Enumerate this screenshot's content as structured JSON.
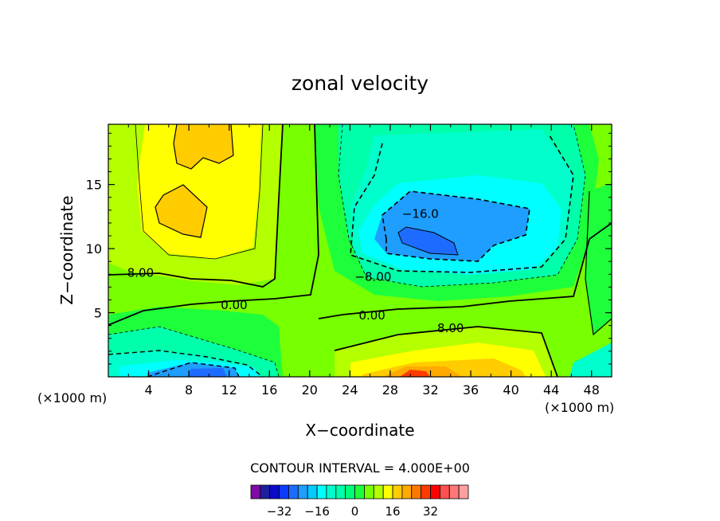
{
  "chart_data": {
    "type": "contour",
    "title": "zonal velocity",
    "xlabel": "X−coordinate",
    "ylabel": "Z−coordinate",
    "x_unit_left": "(×1000 m)",
    "x_unit_right": "(×1000 m)",
    "xlim": [
      0,
      50
    ],
    "ylim": [
      0,
      19.7
    ],
    "x_ticks": [
      4,
      8,
      12,
      16,
      20,
      24,
      28,
      32,
      36,
      40,
      44,
      48
    ],
    "y_ticks": [
      5,
      10,
      15
    ],
    "contour_interval_label": "CONTOUR INTERVAL = 4.000E+00",
    "contour_labels": [
      {
        "text": "8.00",
        "x": 3.2,
        "z": 8.1
      },
      {
        "text": "0.00",
        "x": 12.5,
        "z": 5.6
      },
      {
        "text": "−16.0",
        "x": 31.0,
        "z": 12.7
      },
      {
        "text": "−8.00",
        "x": 26.3,
        "z": 7.8
      },
      {
        "text": "0.00",
        "x": 26.2,
        "z": 4.8
      },
      {
        "text": "8.00",
        "x": 34.0,
        "z": 3.8
      }
    ],
    "features": [
      {
        "kind": "max",
        "x": 9.5,
        "z": 17.5,
        "value": 16
      },
      {
        "kind": "max",
        "x": 7.0,
        "z": 13.0,
        "value": 16
      },
      {
        "kind": "min",
        "x": 30.0,
        "z": 10.8,
        "value": -20
      },
      {
        "kind": "min",
        "x": 9.0,
        "z": 0.3,
        "value": -20
      },
      {
        "kind": "max",
        "x": 30.0,
        "z": 0.3,
        "value": 24
      }
    ],
    "colorbar": {
      "colors": [
        "#7f0aa6",
        "#1e1e9e",
        "#0a0acc",
        "#0a3cff",
        "#1e6cff",
        "#1e9eff",
        "#00ccff",
        "#00ffff",
        "#00ffcc",
        "#00ffaa",
        "#00ff78",
        "#1eff3c",
        "#78ff00",
        "#b4ff00",
        "#ffff00",
        "#ffcc00",
        "#ffaa00",
        "#ff7800",
        "#ff3c00",
        "#ff0000",
        "#ff5050",
        "#ff7878",
        "#ff9e9e"
      ],
      "range": [
        -44,
        48
      ],
      "tick_values": [
        -32,
        -16,
        0,
        16,
        32
      ],
      "tick_labels": [
        "−32",
        "−16",
        "0",
        "16",
        "32"
      ]
    }
  }
}
